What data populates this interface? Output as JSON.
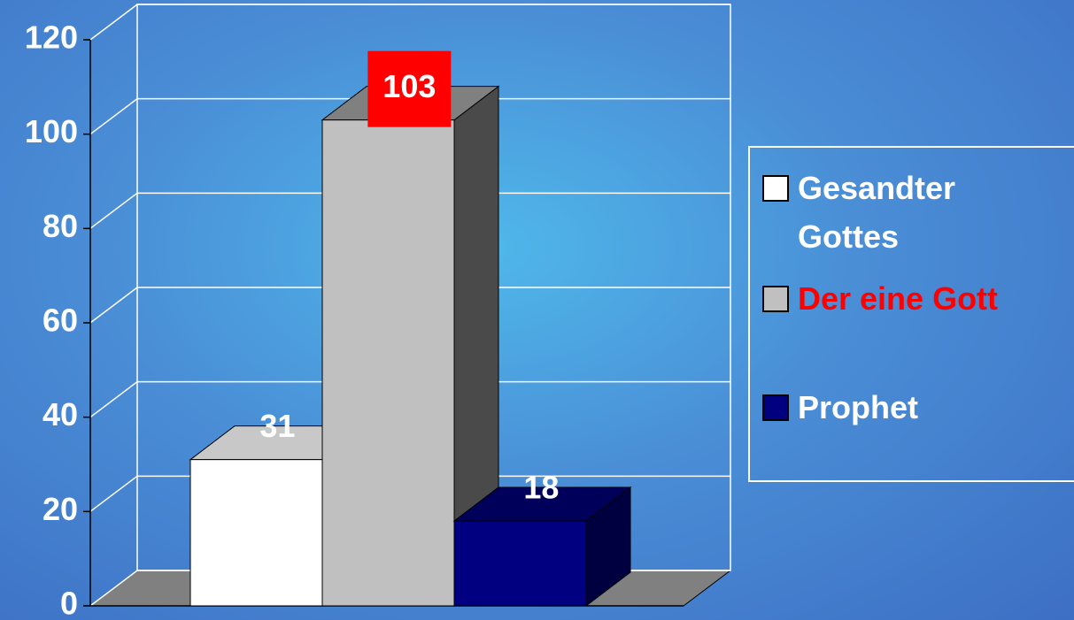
{
  "chart_data": {
    "type": "bar3d",
    "series": [
      {
        "name": "Gesandter Gottes",
        "color": "#ffffff",
        "top_color": "#c8c8c8",
        "side_color": "#9a9a9a",
        "values": [
          31
        ]
      },
      {
        "name": "Der eine Gott",
        "color": "#c0c0c0",
        "top_color": "#808080",
        "side_color": "#4a4a4a",
        "values": [
          103
        ],
        "label_color": "#ff0000",
        "value_label_background": "#ff0000"
      },
      {
        "name": "Prophet",
        "color": "#000080",
        "top_color": "#00005a",
        "side_color": "#000040",
        "values": [
          18
        ]
      }
    ],
    "ylim": [
      0,
      120
    ],
    "yticks": [
      0,
      20,
      40,
      60,
      80,
      100,
      120
    ],
    "grid": true,
    "legend": "right"
  }
}
